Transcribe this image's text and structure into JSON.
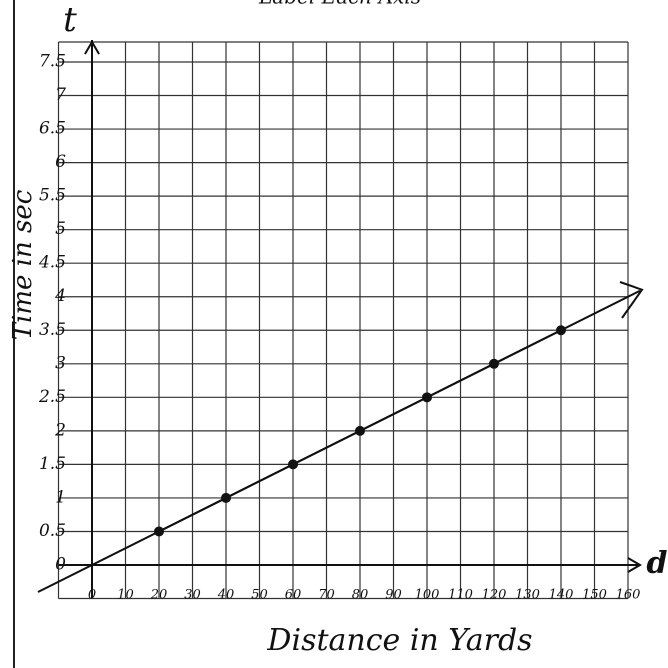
{
  "chart_data": {
    "type": "line",
    "title": "Label Each Axis",
    "x_axis_symbol": "d",
    "y_axis_symbol": "t",
    "xlabel": "Distance in Yards",
    "ylabel": "Time in sec",
    "x": [
      20,
      40,
      60,
      80,
      100,
      120,
      140
    ],
    "series": [
      {
        "values": [
          0.5,
          1,
          1.5,
          2,
          2.5,
          3,
          3.5
        ],
        "color": "#111111"
      }
    ],
    "xlim": [
      0,
      160
    ],
    "ylim": [
      0,
      7.5
    ],
    "xticks": [
      0,
      10,
      20,
      30,
      40,
      50,
      60,
      70,
      80,
      90,
      100,
      110,
      120,
      130,
      140,
      150,
      160
    ],
    "yticks": [
      0,
      0.5,
      1,
      1.5,
      2,
      2.5,
      3,
      3.5,
      4,
      4.5,
      5,
      5.5,
      6,
      6.5,
      7,
      7.5
    ],
    "grid": true
  }
}
